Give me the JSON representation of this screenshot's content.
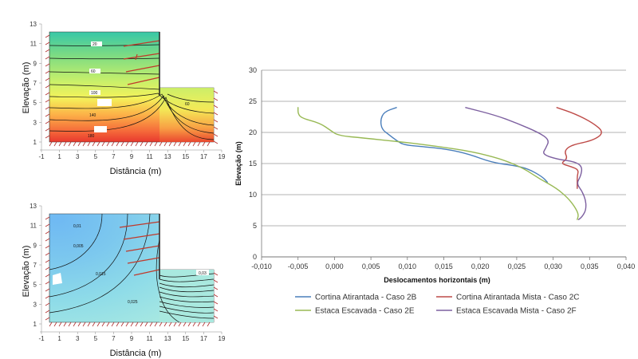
{
  "left_top": {
    "ylabel": "Elevação (m)",
    "xlabel": "Distância (m)",
    "xticks": [
      "-1",
      "1",
      "3",
      "5",
      "7",
      "9",
      "11",
      "13",
      "15",
      "17",
      "19"
    ],
    "yticks": [
      "1",
      "3",
      "5",
      "7",
      "9",
      "11",
      "13"
    ],
    "contour_labels": [
      "20",
      "60",
      "100",
      "140",
      "180",
      "60"
    ]
  },
  "left_bottom": {
    "ylabel": "Elevação (m)",
    "xlabel": "Distância (m)",
    "xticks": [
      "-1",
      "1",
      "3",
      "5",
      "7",
      "9",
      "11",
      "13",
      "15",
      "17",
      "19"
    ],
    "yticks": [
      "1",
      "3",
      "5",
      "7",
      "9",
      "11",
      "13"
    ],
    "contour_labels": [
      "0,005",
      "0,015",
      "0,025",
      "0,03",
      "0,01"
    ]
  },
  "colors": {
    "s2B": "#4a7ebb",
    "s2C": "#be4b48",
    "s2E": "#98b954",
    "s2F": "#7d60a0"
  },
  "chart_data": {
    "type": "line",
    "title": "",
    "xlabel": "Deslocamentos horizontais (m)",
    "ylabel": "Elevação (m)",
    "xlim": [
      -0.01,
      0.04
    ],
    "ylim": [
      0,
      30
    ],
    "xticks": [
      "-0,010",
      "-0,005",
      "0,000",
      "0,005",
      "0,010",
      "0,015",
      "0,020",
      "0,025",
      "0,030",
      "0,035",
      "0,040"
    ],
    "yticks": [
      "0",
      "5",
      "10",
      "15",
      "20",
      "25",
      "30"
    ],
    "grid": "horizontal",
    "legend": "bottom",
    "series": [
      {
        "name": "Cortina Atirantada - Caso 2B",
        "points": [
          [
            0.0085,
            24
          ],
          [
            0.0068,
            23.3
          ],
          [
            0.0063,
            22
          ],
          [
            0.0065,
            20.5
          ],
          [
            0.0075,
            19.6
          ],
          [
            0.0085,
            18.7
          ],
          [
            0.0095,
            18
          ],
          [
            0.0115,
            17.8
          ],
          [
            0.0155,
            17.3
          ],
          [
            0.0185,
            16.5
          ],
          [
            0.0215,
            15.2
          ],
          [
            0.0245,
            14.7
          ],
          [
            0.0265,
            14.2
          ],
          [
            0.0285,
            12.9
          ],
          [
            0.0292,
            12
          ]
        ]
      },
      {
        "name": "Cortina Atirantada Mista - Caso 2C",
        "points": [
          [
            0.0305,
            24
          ],
          [
            0.033,
            23
          ],
          [
            0.0355,
            21.5
          ],
          [
            0.037,
            20
          ],
          [
            0.0355,
            18.7
          ],
          [
            0.0325,
            18
          ],
          [
            0.0315,
            17
          ],
          [
            0.032,
            15.8
          ],
          [
            0.031,
            15
          ],
          [
            0.0325,
            14.5
          ],
          [
            0.0335,
            14
          ],
          [
            0.0333,
            13
          ],
          [
            0.0333,
            12
          ],
          [
            0.0333,
            11
          ]
        ]
      },
      {
        "name": "Estaca Escavada - Caso 2E",
        "points": [
          [
            -0.005,
            24
          ],
          [
            -0.005,
            23
          ],
          [
            -0.0045,
            22.3
          ],
          [
            -0.002,
            21.5
          ],
          [
            -0.0005,
            20.3
          ],
          [
            0.0005,
            19.5
          ],
          [
            0.004,
            19.1
          ],
          [
            0.009,
            18.5
          ],
          [
            0.014,
            17.8
          ],
          [
            0.019,
            16.9
          ],
          [
            0.023,
            15.7
          ],
          [
            0.026,
            14.2
          ],
          [
            0.0282,
            12.5
          ],
          [
            0.0305,
            11
          ],
          [
            0.032,
            9.5
          ],
          [
            0.033,
            8
          ],
          [
            0.0335,
            6.8
          ],
          [
            0.0333,
            6
          ]
        ]
      },
      {
        "name": "Estaca Escavada Mista - Caso 2F",
        "points": [
          [
            0.018,
            24
          ],
          [
            0.022,
            22.8
          ],
          [
            0.025,
            21.5
          ],
          [
            0.028,
            20
          ],
          [
            0.0295,
            18.8
          ],
          [
            0.029,
            17.5
          ],
          [
            0.0285,
            16.5
          ],
          [
            0.0305,
            15.7
          ],
          [
            0.033,
            15.3
          ],
          [
            0.034,
            14.5
          ],
          [
            0.0338,
            13
          ],
          [
            0.0332,
            11.8
          ],
          [
            0.034,
            10.5
          ],
          [
            0.0345,
            9
          ],
          [
            0.0345,
            7.5
          ],
          [
            0.034,
            6.5
          ],
          [
            0.0335,
            6
          ]
        ]
      }
    ]
  }
}
